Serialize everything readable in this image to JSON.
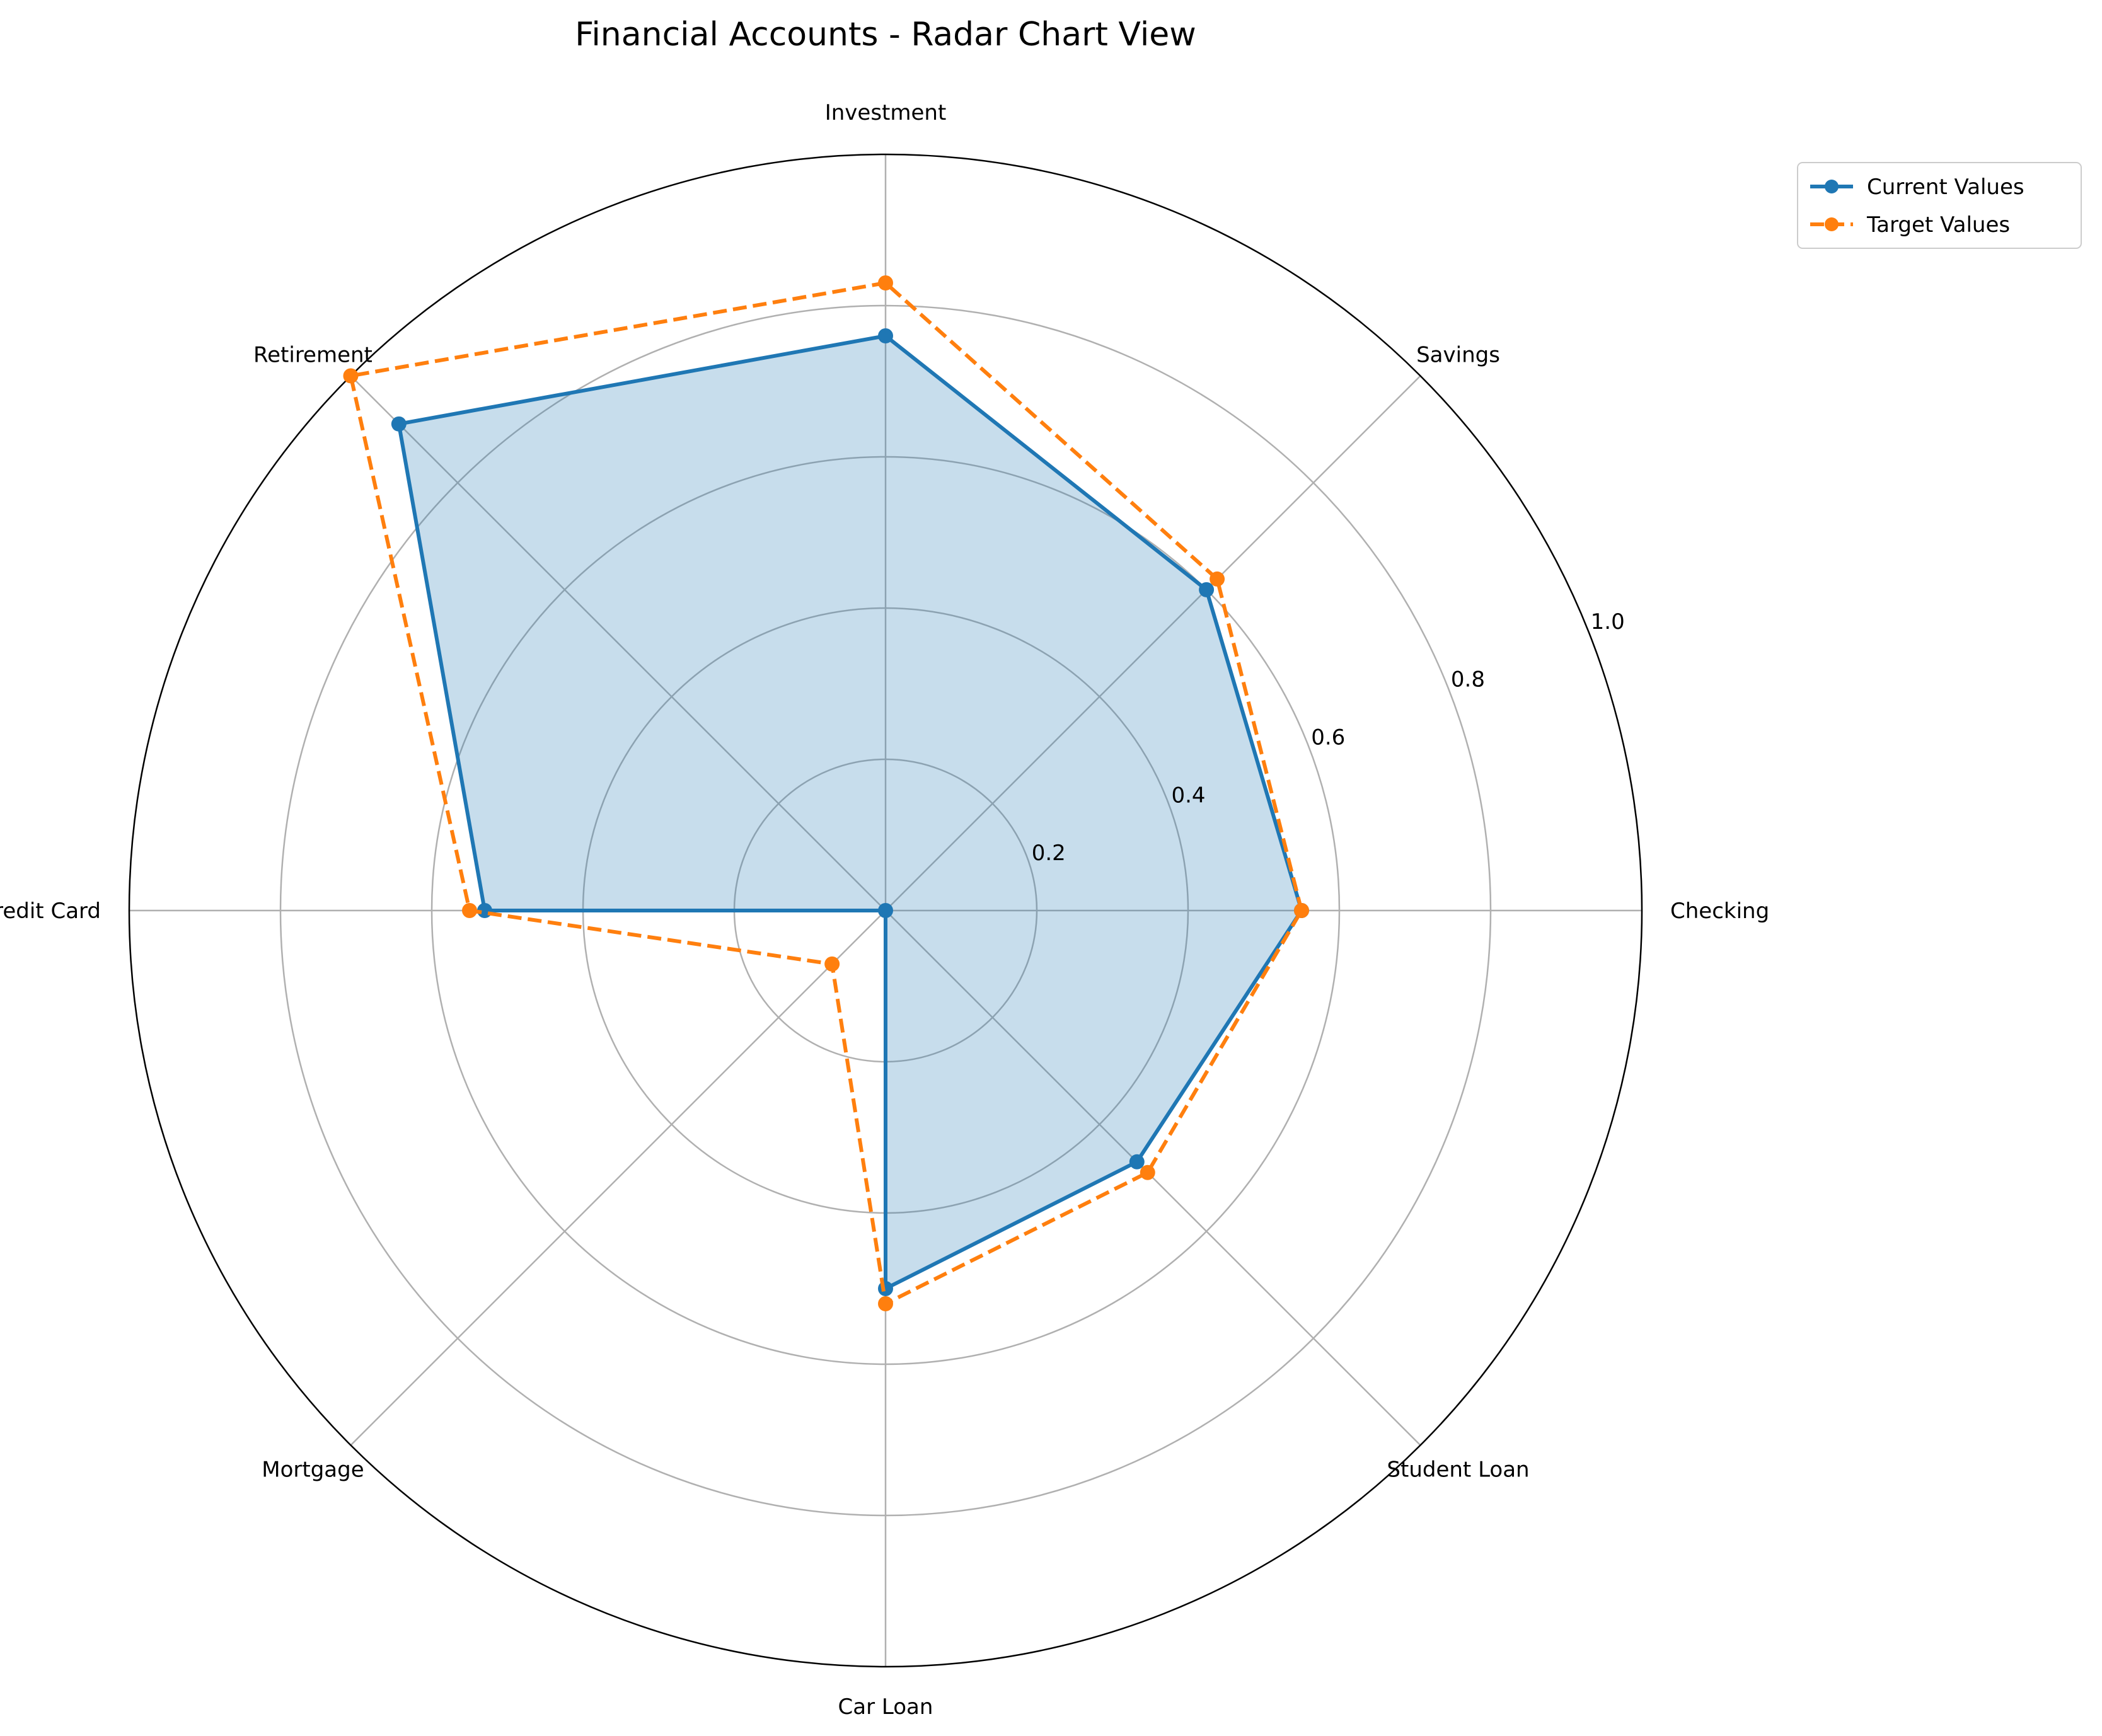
{
  "chart_data": {
    "type": "radar",
    "title": "Financial Accounts - Radar Chart View",
    "categories": [
      "Checking",
      "Savings",
      "Investment",
      "Retirement",
      "Credit Card",
      "Mortgage",
      "Car Loan",
      "Student Loan"
    ],
    "series": [
      {
        "name": "Current Values",
        "values": [
          0.55,
          0.6,
          0.76,
          0.91,
          0.53,
          0.0,
          0.5,
          0.47
        ],
        "color": "#1f77b4",
        "line_style": "solid",
        "fill": true,
        "fill_color": "#1f77b4"
      },
      {
        "name": "Target Values",
        "values": [
          0.55,
          0.62,
          0.83,
          1.0,
          0.55,
          0.1,
          0.52,
          0.49
        ],
        "color": "#ff7f0e",
        "line_style": "dashed",
        "fill": false
      }
    ],
    "radial_ticks": [
      "0.2",
      "0.4",
      "0.6",
      "0.8",
      "1.0"
    ],
    "radial_tick_values": [
      0.2,
      0.4,
      0.6,
      0.8,
      1.0
    ],
    "rlim": [
      0,
      1.0
    ],
    "grid": true,
    "legend_position": "upper right, outside plot"
  }
}
